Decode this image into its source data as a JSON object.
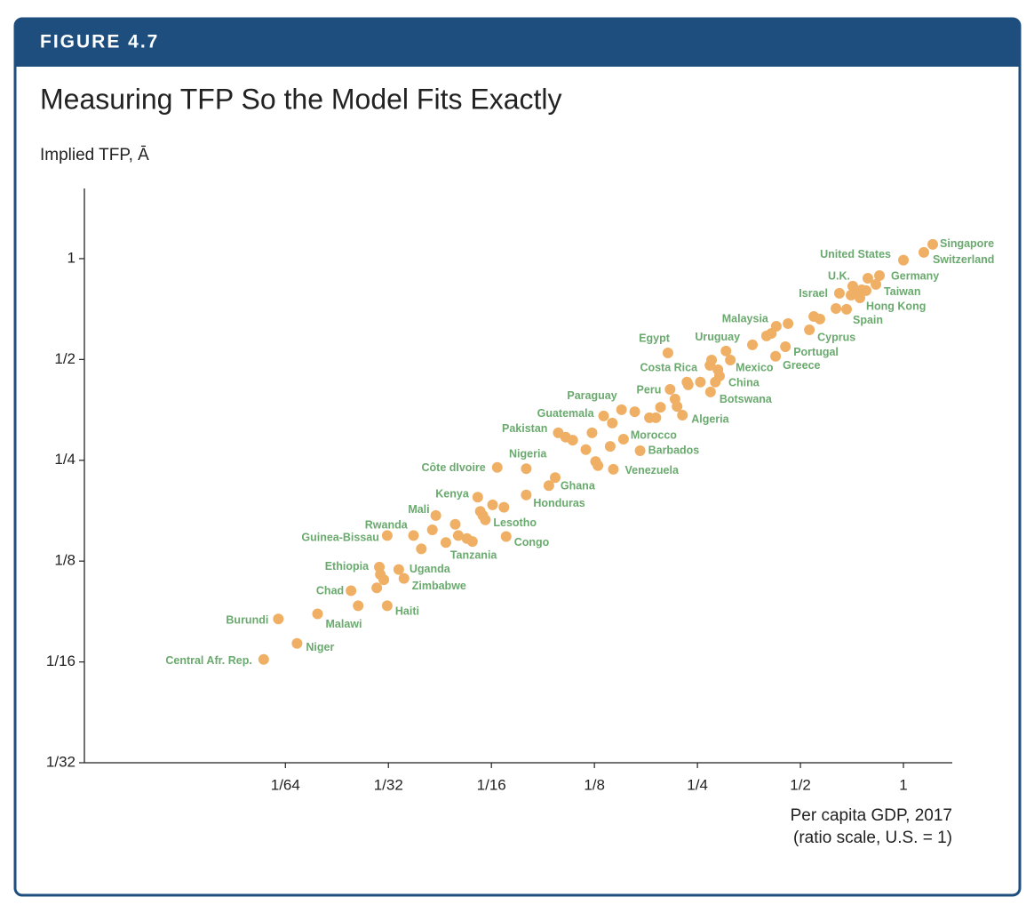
{
  "figure_label": "FIGURE 4.7",
  "chart_data": {
    "type": "scatter",
    "title": "Measuring TFP So the Model Fits Exactly",
    "y_label": "Implied TFP, Ā",
    "x_label": [
      "Per capita GDP, 2017",
      "(ratio scale, U.S. = 1)"
    ],
    "log_scale": true,
    "color": "#efb065",
    "label_color": "#6aaa6e",
    "xlim": [
      0.00404,
      1.389
    ],
    "ylim": [
      0.03125,
      1.62
    ],
    "xticks": [
      {
        "value": 0.015625,
        "label": "1/64"
      },
      {
        "value": 0.03125,
        "label": "1/32"
      },
      {
        "value": 0.0625,
        "label": "1/16"
      },
      {
        "value": 0.125,
        "label": "1/8"
      },
      {
        "value": 0.25,
        "label": "1/4"
      },
      {
        "value": 0.5,
        "label": "1/2"
      },
      1
    ],
    "yticks": [
      {
        "value": 0.03125,
        "label": "1/32"
      },
      {
        "value": 0.0625,
        "label": "1/16"
      },
      {
        "value": 0.125,
        "label": "1/8"
      },
      {
        "value": 0.25,
        "label": "1/4"
      },
      {
        "value": 0.5,
        "label": "1/2"
      },
      1
    ],
    "labels": [
      "Singapore",
      "Switzerland",
      "United States",
      "Germany",
      "U.K.",
      "Taiwan",
      "Hong Kong",
      "Spain",
      "Israel",
      "Cyprus",
      "Portugal",
      "Greece",
      "Malaysia",
      "Uruguay",
      "Egypt",
      "Costa Rica",
      "Mexico",
      "China",
      "Peru",
      "Botswana",
      "Algeria",
      "Paraguay",
      "Guatemala",
      "Pakistan",
      "Morocco",
      "Barbados",
      "Nigeria",
      "Côte dIvoire",
      "Venezuela",
      "Ghana",
      "Honduras",
      "Kenya",
      "Mali",
      "Lesotho",
      "Rwanda",
      "Guinea-Bissau",
      "Congo",
      "Tanzania",
      "Ethiopia",
      "Uganda",
      "Zimbabwe",
      "Chad",
      "Haiti",
      "Burundi",
      "Malawi",
      "Niger",
      "Central Afr. Rep.",
      null,
      null,
      null,
      null,
      null,
      null,
      null,
      null,
      null,
      null,
      null,
      null,
      null,
      null,
      null,
      null,
      null,
      null,
      null,
      null,
      null,
      null,
      null,
      null,
      null,
      null,
      null,
      null,
      null,
      null,
      null,
      null,
      null,
      null,
      null,
      null,
      null,
      null,
      null,
      null,
      null,
      null,
      null,
      null,
      null,
      null,
      null
    ],
    "x": [
      1.218,
      1.147,
      1.0,
      0.851,
      0.787,
      0.831,
      0.746,
      0.682,
      0.65,
      0.531,
      0.452,
      0.423,
      0.425,
      0.362,
      0.205,
      0.275,
      0.312,
      0.29,
      0.208,
      0.273,
      0.226,
      0.15,
      0.133,
      0.098,
      0.152,
      0.17,
      0.079,
      0.065,
      0.142,
      0.092,
      0.079,
      0.057,
      0.043,
      0.06,
      0.042,
      0.031,
      0.069,
      0.055,
      0.0294,
      0.0335,
      0.0347,
      0.0243,
      0.031,
      0.0149,
      0.0194,
      0.0169,
      0.0135,
      0.711,
      0.733,
      0.755,
      0.703,
      0.778,
      0.635,
      0.547,
      0.57,
      0.46,
      0.411,
      0.398,
      0.303,
      0.233,
      0.255,
      0.235,
      0.282,
      0.272,
      0.287,
      0.215,
      0.218,
      0.195,
      0.181,
      0.189,
      0.164,
      0.141,
      0.123,
      0.103,
      0.108,
      0.118,
      0.139,
      0.126,
      0.128,
      0.096,
      0.063,
      0.068,
      0.058,
      0.059,
      0.049,
      0.053,
      0.05,
      0.046,
      0.037,
      0.039,
      0.0296,
      0.0303,
      0.0289,
      0.0255
    ],
    "values": [
      1.103,
      1.044,
      0.99,
      0.89,
      0.874,
      0.838,
      0.764,
      0.706,
      0.788,
      0.613,
      0.546,
      0.511,
      0.628,
      0.553,
      0.523,
      0.498,
      0.498,
      0.446,
      0.407,
      0.4,
      0.341,
      0.354,
      0.339,
      0.302,
      0.289,
      0.267,
      0.236,
      0.238,
      0.235,
      0.21,
      0.197,
      0.194,
      0.171,
      0.166,
      0.155,
      0.149,
      0.148,
      0.143,
      0.12,
      0.118,
      0.111,
      0.102,
      0.092,
      0.084,
      0.087,
      0.071,
      0.0636,
      0.828,
      0.798,
      0.807,
      0.778,
      0.803,
      0.71,
      0.672,
      0.66,
      0.64,
      0.598,
      0.588,
      0.53,
      0.428,
      0.428,
      0.42,
      0.428,
      0.48,
      0.466,
      0.381,
      0.362,
      0.36,
      0.335,
      0.335,
      0.349,
      0.323,
      0.302,
      0.293,
      0.287,
      0.269,
      0.275,
      0.248,
      0.241,
      0.222,
      0.184,
      0.181,
      0.176,
      0.171,
      0.161,
      0.146,
      0.149,
      0.142,
      0.149,
      0.136,
      0.114,
      0.11,
      0.104,
      0.092
    ]
  }
}
